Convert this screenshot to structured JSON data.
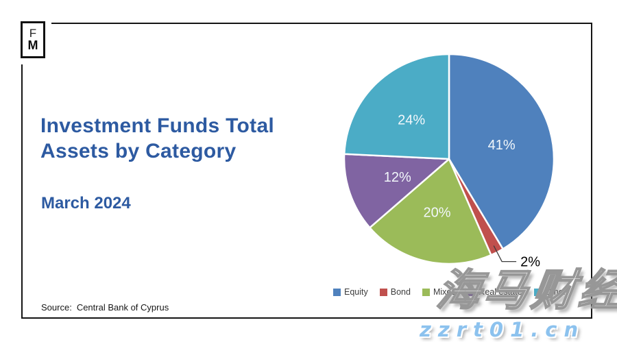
{
  "logo": {
    "line1": "F",
    "line2": "M"
  },
  "title": {
    "line1": "Investment Funds Total",
    "line2": "Assets by Category"
  },
  "subtitle": "March 2024",
  "source": {
    "label": "Source:",
    "text": "Central Bank of Cyprus"
  },
  "watermark": {
    "cjk": "海马财经",
    "url": "zzrt01.cn"
  },
  "colors": {
    "title_blue": "#2d5aa1",
    "frame_black": "#141414",
    "legend_text": "#3d3d3d",
    "watermark_url_blue": "#8cc2ee"
  },
  "chart_data": {
    "type": "pie",
    "title": "Investment Funds Total Assets by Category",
    "subtitle": "March 2024",
    "source": "Central Bank of Cyprus",
    "categories": [
      "Equity",
      "Bond",
      "Mixed",
      "Real estate",
      "Other"
    ],
    "values": [
      41,
      2,
      20,
      12,
      24
    ],
    "unit": "%",
    "labels": [
      "41%",
      "2%",
      "20%",
      "12%",
      "24%"
    ],
    "colors": [
      "#4F81BD",
      "#C0504D",
      "#9BBB59",
      "#8064A2",
      "#4BACC6"
    ],
    "start_angle_deg": 0,
    "direction": "clockwise",
    "slice_border_color": "#ffffff",
    "label_outside": [
      false,
      true,
      false,
      false,
      false
    ],
    "legend_position": "bottom"
  }
}
